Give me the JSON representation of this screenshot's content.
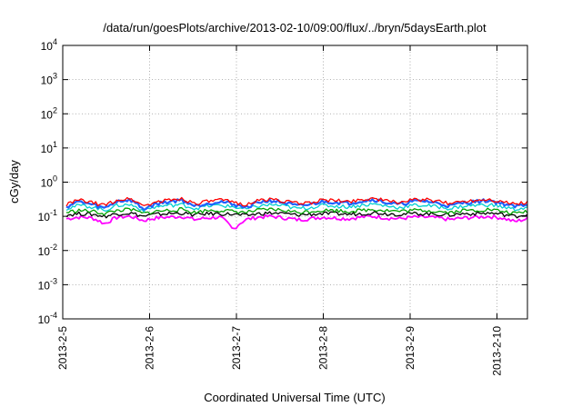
{
  "chart_data": {
    "type": "line",
    "title": "/data/run/goesPlots/archive/2013-02-10/09:00/flux/../bryn/5daysEarth.plot",
    "xlabel": "Coordinated Universal Time (UTC)",
    "ylabel": "cGy/day",
    "yscale": "log",
    "ylim": [
      0.0001,
      10000
    ],
    "y_ticks": [
      {
        "base": "10",
        "exp": "-4",
        "value": 0.0001
      },
      {
        "base": "10",
        "exp": "-3",
        "value": 0.001
      },
      {
        "base": "10",
        "exp": "-2",
        "value": 0.01
      },
      {
        "base": "10",
        "exp": "-1",
        "value": 0.1
      },
      {
        "base": "10",
        "exp": "0",
        "value": 1
      },
      {
        "base": "10",
        "exp": "1",
        "value": 10
      },
      {
        "base": "10",
        "exp": "2",
        "value": 100
      },
      {
        "base": "10",
        "exp": "3",
        "value": 1000
      },
      {
        "base": "10",
        "exp": "4",
        "value": 10000
      }
    ],
    "x_ticks": [
      "2013-2-5",
      "2013-2-6",
      "2013-2-7",
      "2013-2-8",
      "2013-2-9",
      "2013-2-10"
    ],
    "xlim": [
      "2013-02-05",
      "2013-02-10 09:00"
    ],
    "grid": true,
    "legend": "none",
    "series": [
      {
        "color": "#ff0000",
        "typical": 0.27,
        "values": [
          0.22,
          0.3,
          0.25,
          0.21,
          0.3,
          0.33,
          0.2,
          0.26,
          0.3,
          0.33,
          0.24,
          0.27,
          0.3,
          0.26,
          0.22,
          0.29,
          0.32,
          0.28,
          0.24,
          0.25,
          0.3,
          0.29,
          0.27,
          0.31,
          0.34,
          0.28,
          0.26,
          0.3,
          0.31,
          0.27,
          0.24,
          0.28,
          0.3,
          0.32,
          0.27,
          0.23,
          0.26
        ]
      },
      {
        "color": "#2060ff",
        "typical": 0.24,
        "values": [
          0.19,
          0.27,
          0.22,
          0.17,
          0.28,
          0.3,
          0.16,
          0.23,
          0.27,
          0.3,
          0.2,
          0.24,
          0.27,
          0.23,
          0.18,
          0.26,
          0.29,
          0.25,
          0.2,
          0.22,
          0.27,
          0.26,
          0.24,
          0.28,
          0.31,
          0.25,
          0.22,
          0.27,
          0.28,
          0.24,
          0.2,
          0.25,
          0.27,
          0.29,
          0.24,
          0.19,
          0.23
        ]
      },
      {
        "color": "#00d0d0",
        "typical": 0.2,
        "values": [
          0.17,
          0.21,
          0.19,
          0.15,
          0.21,
          0.22,
          0.15,
          0.19,
          0.21,
          0.22,
          0.17,
          0.2,
          0.21,
          0.19,
          0.16,
          0.2,
          0.22,
          0.2,
          0.17,
          0.18,
          0.21,
          0.2,
          0.19,
          0.21,
          0.23,
          0.2,
          0.18,
          0.21,
          0.21,
          0.19,
          0.17,
          0.2,
          0.21,
          0.22,
          0.19,
          0.16,
          0.18
        ]
      },
      {
        "color": "#00a000",
        "typical": 0.15,
        "values": [
          0.13,
          0.15,
          0.14,
          0.12,
          0.15,
          0.16,
          0.12,
          0.14,
          0.15,
          0.16,
          0.13,
          0.15,
          0.15,
          0.14,
          0.13,
          0.15,
          0.16,
          0.15,
          0.13,
          0.14,
          0.15,
          0.15,
          0.14,
          0.15,
          0.16,
          0.15,
          0.14,
          0.15,
          0.15,
          0.14,
          0.13,
          0.15,
          0.15,
          0.16,
          0.14,
          0.12,
          0.14
        ]
      },
      {
        "color": "#000000",
        "typical": 0.12,
        "values": [
          0.11,
          0.12,
          0.115,
          0.1,
          0.12,
          0.125,
          0.1,
          0.115,
          0.12,
          0.125,
          0.11,
          0.12,
          0.12,
          0.115,
          0.105,
          0.12,
          0.125,
          0.12,
          0.11,
          0.115,
          0.12,
          0.12,
          0.115,
          0.12,
          0.13,
          0.12,
          0.115,
          0.12,
          0.12,
          0.115,
          0.11,
          0.12,
          0.12,
          0.125,
          0.115,
          0.1,
          0.115
        ]
      },
      {
        "color": "#ff00ff",
        "typical": 0.09,
        "values": [
          0.085,
          0.095,
          0.09,
          0.06,
          0.095,
          0.1,
          0.075,
          0.09,
          0.095,
          0.1,
          0.08,
          0.09,
          0.095,
          0.04,
          0.08,
          0.095,
          0.1,
          0.09,
          0.08,
          0.085,
          0.095,
          0.09,
          0.085,
          0.095,
          0.1,
          0.09,
          0.085,
          0.095,
          0.095,
          0.09,
          0.08,
          0.09,
          0.095,
          0.1,
          0.09,
          0.07,
          0.085
        ]
      }
    ]
  }
}
